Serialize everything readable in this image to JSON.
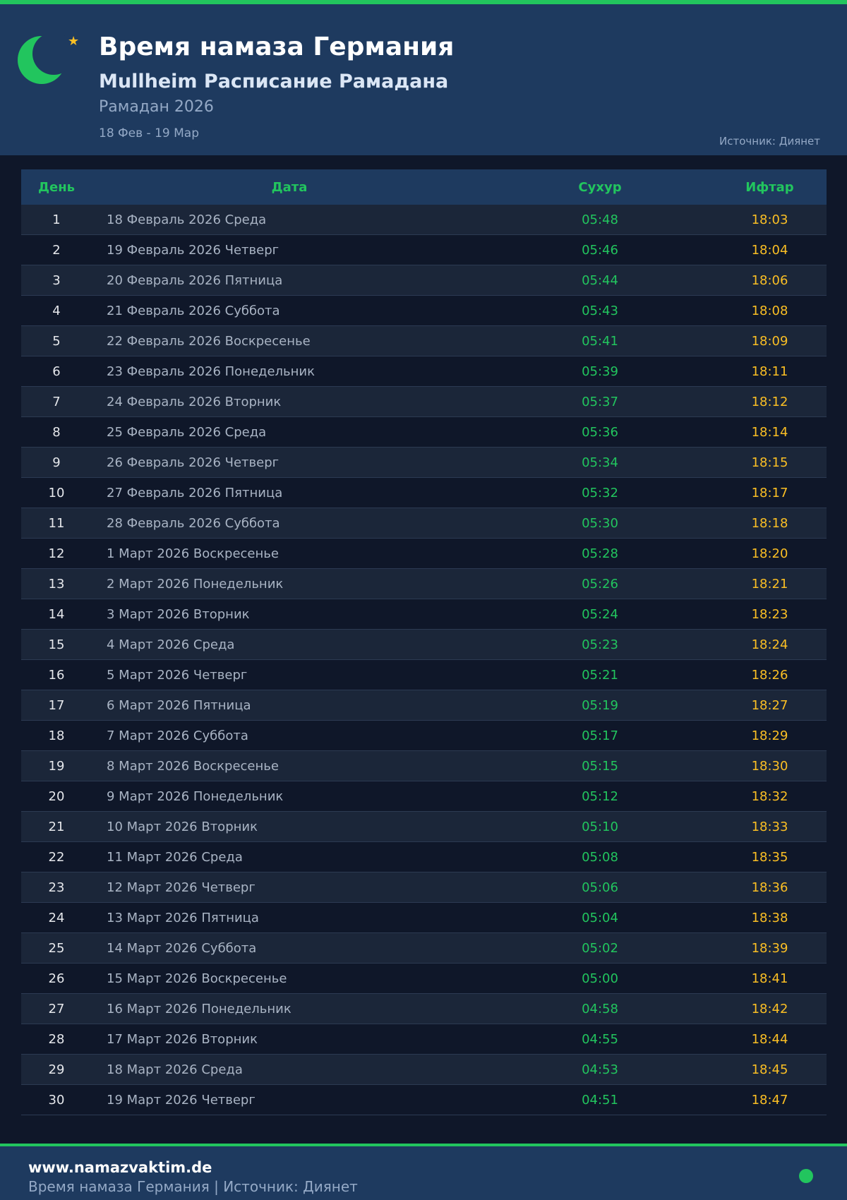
{
  "header": {
    "title": "Время намаза Германия",
    "subtitle": "Mullheim Расписание Рамадана",
    "ramadan": "Рамадан 2026",
    "range": "18 Фев - 19 Мар",
    "source": "Источник: Диянет"
  },
  "table": {
    "columns": [
      "День",
      "Дата",
      "Сухур",
      "Ифтар"
    ],
    "rows": [
      [
        "1",
        "18 Февраль 2026 Среда",
        "05:48",
        "18:03"
      ],
      [
        "2",
        "19 Февраль 2026 Четверг",
        "05:46",
        "18:04"
      ],
      [
        "3",
        "20 Февраль 2026 Пятница",
        "05:44",
        "18:06"
      ],
      [
        "4",
        "21 Февраль 2026 Суббота",
        "05:43",
        "18:08"
      ],
      [
        "5",
        "22 Февраль 2026 Воскресенье",
        "05:41",
        "18:09"
      ],
      [
        "6",
        "23 Февраль 2026 Понедельник",
        "05:39",
        "18:11"
      ],
      [
        "7",
        "24 Февраль 2026 Вторник",
        "05:37",
        "18:12"
      ],
      [
        "8",
        "25 Февраль 2026 Среда",
        "05:36",
        "18:14"
      ],
      [
        "9",
        "26 Февраль 2026 Четверг",
        "05:34",
        "18:15"
      ],
      [
        "10",
        "27 Февраль 2026 Пятница",
        "05:32",
        "18:17"
      ],
      [
        "11",
        "28 Февраль 2026 Суббота",
        "05:30",
        "18:18"
      ],
      [
        "12",
        "1 Март 2026 Воскресенье",
        "05:28",
        "18:20"
      ],
      [
        "13",
        "2 Март 2026 Понедельник",
        "05:26",
        "18:21"
      ],
      [
        "14",
        "3 Март 2026 Вторник",
        "05:24",
        "18:23"
      ],
      [
        "15",
        "4 Март 2026 Среда",
        "05:23",
        "18:24"
      ],
      [
        "16",
        "5 Март 2026 Четверг",
        "05:21",
        "18:26"
      ],
      [
        "17",
        "6 Март 2026 Пятница",
        "05:19",
        "18:27"
      ],
      [
        "18",
        "7 Март 2026 Суббота",
        "05:17",
        "18:29"
      ],
      [
        "19",
        "8 Март 2026 Воскресенье",
        "05:15",
        "18:30"
      ],
      [
        "20",
        "9 Март 2026 Понедельник",
        "05:12",
        "18:32"
      ],
      [
        "21",
        "10 Март 2026 Вторник",
        "05:10",
        "18:33"
      ],
      [
        "22",
        "11 Март 2026 Среда",
        "05:08",
        "18:35"
      ],
      [
        "23",
        "12 Март 2026 Четверг",
        "05:06",
        "18:36"
      ],
      [
        "24",
        "13 Март 2026 Пятница",
        "05:04",
        "18:38"
      ],
      [
        "25",
        "14 Март 2026 Суббота",
        "05:02",
        "18:39"
      ],
      [
        "26",
        "15 Март 2026 Воскресенье",
        "05:00",
        "18:41"
      ],
      [
        "27",
        "16 Март 2026 Понедельник",
        "04:58",
        "18:42"
      ],
      [
        "28",
        "17 Март 2026 Вторник",
        "04:55",
        "18:44"
      ],
      [
        "29",
        "18 Март 2026 Среда",
        "04:53",
        "18:45"
      ],
      [
        "30",
        "19 Март 2026 Четверг",
        "04:51",
        "18:47"
      ]
    ]
  },
  "footer": {
    "site": "www.namazvaktim.de",
    "text": "Время намаза Германия | Источник: Диянет"
  },
  "colors": {
    "accent": "#22c55e",
    "iftar": "#fbbf24",
    "header_bg": "#1e3a5f",
    "page_bg": "#0f1729"
  }
}
